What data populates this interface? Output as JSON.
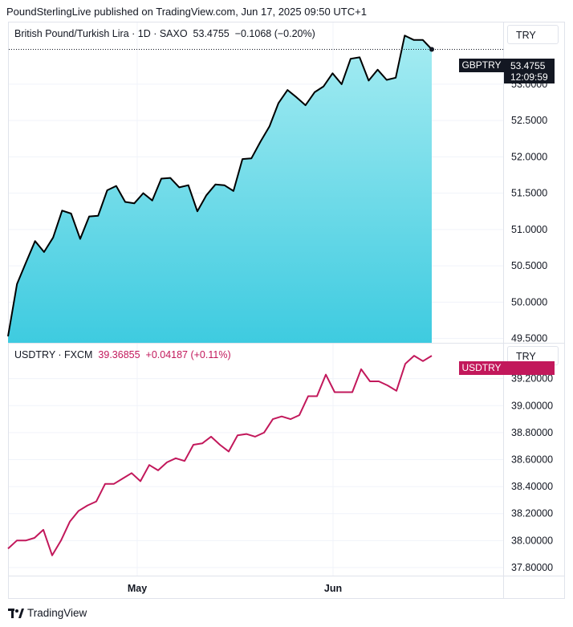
{
  "header": {
    "text": "PoundSterlingLive published on TradingView.com, Jun 17, 2025 09:50 UTC+1"
  },
  "top_pane": {
    "legend_name": "British Pound/Turkish Lira · 1D · SAXO",
    "legend_last": "53.4755",
    "legend_change": "−0.1068 (−0.20%)",
    "currency_button": "TRY",
    "price_tag_symbol": "GBPTRY",
    "price_tag_value": "53.4755",
    "price_tag_countdown": "12:09:59"
  },
  "bottom_pane": {
    "legend_name": "USDTRY · FXCM",
    "legend_last": "39.36855",
    "legend_change": "+0.04187 (+0.11%)",
    "currency_button": "TRY",
    "price_tag_symbol": "USDTRY"
  },
  "footer": {
    "brand": "TradingView"
  },
  "colors": {
    "area_top": "#a6ecf2",
    "area_bottom": "#3ecbe0",
    "line_top": "#000000",
    "line_bottom": "#c2185b"
  },
  "chart_data": [
    {
      "type": "area",
      "title": "British Pound/Turkish Lira · 1D · SAXO",
      "series": [
        {
          "name": "GBPTRY",
          "values": [
            49.53,
            50.25,
            50.55,
            50.84,
            50.69,
            50.89,
            51.26,
            51.22,
            50.87,
            51.18,
            51.19,
            51.54,
            51.6,
            51.38,
            51.36,
            51.5,
            51.4,
            51.7,
            51.71,
            51.58,
            51.61,
            51.25,
            51.47,
            51.62,
            51.61,
            51.53,
            51.97,
            51.98,
            52.21,
            52.42,
            52.74,
            52.92,
            52.82,
            52.71,
            52.89,
            52.97,
            53.15,
            53.0,
            53.35,
            53.37,
            53.05,
            53.2,
            53.06,
            53.09,
            53.67,
            53.61,
            53.61,
            53.48
          ]
        }
      ],
      "x_labels": [
        "May",
        "Jun"
      ],
      "y_ticks": [
        "53.0000",
        "52.5000",
        "52.0000",
        "51.5000",
        "51.0000",
        "50.5000",
        "50.0000",
        "49.5000"
      ],
      "ylim": [
        49.44,
        53.85
      ]
    },
    {
      "type": "line",
      "title": "USDTRY · FXCM",
      "series": [
        {
          "name": "USDTRY",
          "values": [
            37.94,
            38.0,
            38.0,
            38.02,
            38.08,
            37.89,
            38.0,
            38.14,
            38.22,
            38.26,
            38.29,
            38.42,
            38.42,
            38.46,
            38.5,
            38.44,
            38.56,
            38.52,
            38.58,
            38.61,
            38.59,
            38.71,
            38.72,
            38.77,
            38.71,
            38.66,
            38.78,
            38.79,
            38.77,
            38.8,
            38.9,
            38.92,
            38.9,
            38.93,
            39.07,
            39.07,
            39.23,
            39.1,
            39.1,
            39.1,
            39.27,
            39.18,
            39.18,
            39.15,
            39.11,
            39.31,
            39.37,
            39.33,
            39.37
          ]
        }
      ],
      "x_labels": [
        "May",
        "Jun"
      ],
      "y_ticks": [
        "39.20000",
        "39.00000",
        "38.80000",
        "38.60000",
        "38.40000",
        "38.20000",
        "38.00000",
        "37.80000"
      ],
      "ylim": [
        37.74,
        39.46
      ]
    }
  ]
}
